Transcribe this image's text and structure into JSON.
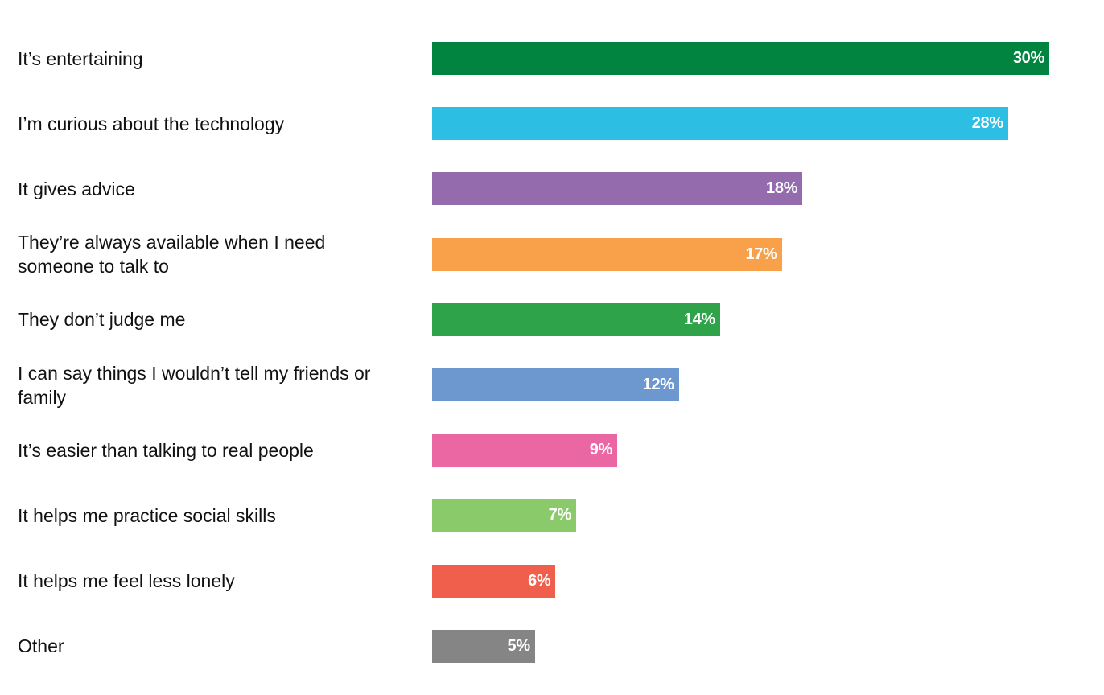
{
  "chart_data": {
    "type": "bar",
    "orientation": "horizontal",
    "title": "",
    "xlabel": "",
    "ylabel": "",
    "xlim": [
      0,
      30
    ],
    "value_suffix": "%",
    "categories": [
      "It’s entertaining",
      "I’m curious about the technology",
      "It gives advice",
      "They’re always available when I need someone to talk to",
      "They don’t judge me",
      "I can say things I wouldn’t tell my friends or family",
      "It’s easier than talking to real people",
      "It helps me practice social skills",
      "It helps me feel less lonely",
      "Other"
    ],
    "values": [
      30,
      28,
      18,
      17,
      14,
      12,
      9,
      7,
      6,
      5
    ],
    "colors": [
      "#00843F",
      "#2CBFE3",
      "#946CAE",
      "#F8A14A",
      "#2EA34A",
      "#6C97CF",
      "#EA67A3",
      "#8BCA6B",
      "#F05F4C",
      "#858585"
    ]
  }
}
